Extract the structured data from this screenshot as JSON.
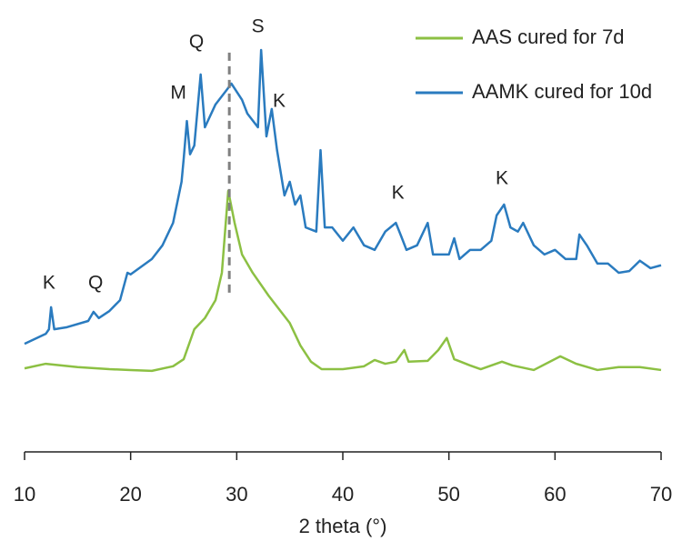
{
  "chart_data": {
    "type": "line",
    "x_label": "2 theta (°)",
    "xlim": [
      10,
      70
    ],
    "xticks": [
      10,
      20,
      30,
      40,
      50,
      60,
      70
    ],
    "ylim": [
      0,
      105
    ],
    "legend": "top right",
    "series": [
      {
        "name": "AAS cured for 7d",
        "color": "#8cc043",
        "x": [
          10,
          12,
          15,
          18,
          20,
          22,
          24,
          25,
          26,
          27,
          28,
          28.6,
          29.2,
          29.8,
          30.5,
          31.5,
          33,
          35,
          36,
          37,
          38,
          40,
          42,
          43,
          44,
          45,
          45.8,
          46.2,
          48,
          49,
          49.8,
          50.5,
          52,
          53,
          55,
          56,
          58,
          60.5,
          62,
          64,
          66,
          68,
          70
        ],
        "values": [
          20.1,
          21.2,
          20.4,
          19.9,
          19.7,
          19.5,
          20.6,
          22.3,
          29.5,
          32.2,
          36.5,
          43.1,
          62.8,
          55.1,
          47.5,
          43.1,
          37.6,
          31.0,
          25.6,
          21.7,
          19.9,
          19.9,
          20.6,
          22.1,
          21.2,
          21.7,
          24.5,
          21.7,
          21.9,
          24.5,
          27.4,
          22.3,
          20.8,
          19.9,
          21.7,
          20.8,
          19.7,
          23.0,
          21.2,
          19.7,
          20.4,
          20.4,
          19.7
        ]
      },
      {
        "name": "AAMK cured for 10d",
        "color": "#2a7bbf",
        "x": [
          10,
          12,
          12.3,
          12.5,
          12.8,
          14,
          16,
          16.5,
          17,
          18,
          19,
          19.7,
          20,
          22,
          23,
          24,
          24.8,
          25,
          25.3,
          25.6,
          26,
          26.6,
          27,
          28,
          29,
          29.5,
          30.5,
          31,
          32,
          32.3,
          32.8,
          33.3,
          33.8,
          34.5,
          35,
          35.5,
          36,
          36.5,
          37.5,
          37.9,
          38.3,
          39,
          40,
          41,
          42,
          43,
          44,
          45,
          45.5,
          46,
          47,
          48,
          48.5,
          50,
          50.5,
          51,
          52,
          53,
          54,
          54.5,
          55.2,
          55.8,
          56.5,
          57,
          58,
          59,
          60,
          61,
          62,
          62.3,
          63,
          64,
          65,
          66,
          67,
          68,
          69,
          70
        ],
        "values": [
          26.0,
          28.4,
          29.5,
          34.8,
          29.5,
          30.0,
          31.5,
          33.7,
          32.2,
          33.9,
          36.5,
          43.1,
          42.7,
          46.4,
          49.7,
          55.1,
          65.0,
          70.5,
          79.6,
          71.6,
          73.7,
          90.8,
          78.1,
          83.6,
          86.9,
          88.6,
          84.7,
          81.4,
          78.1,
          96.7,
          75.9,
          82.5,
          72.6,
          61.7,
          65.0,
          59.5,
          61.7,
          54.0,
          53.0,
          72.6,
          54.0,
          54.0,
          50.8,
          54.0,
          49.7,
          48.6,
          53.0,
          55.1,
          51.9,
          48.6,
          49.7,
          55.1,
          47.5,
          47.5,
          51.4,
          46.4,
          48.6,
          48.6,
          50.8,
          56.9,
          59.5,
          54.0,
          53.0,
          55.1,
          49.7,
          47.5,
          48.6,
          46.4,
          46.4,
          52.3,
          49.7,
          45.3,
          45.3,
          43.1,
          43.5,
          46.0,
          44.2,
          44.9
        ]
      }
    ],
    "dashed_line": {
      "x": 29.3,
      "y_range": [
        38.3,
        96.7
      ],
      "color": "#808080"
    },
    "annotations": [
      {
        "text": "K",
        "x": 12.3,
        "y": 40.5
      },
      {
        "text": "Q",
        "x": 16.7,
        "y": 40.5
      },
      {
        "text": "M",
        "x": 24.5,
        "y": 86.2
      },
      {
        "text": "Q",
        "x": 26.2,
        "y": 98.5
      },
      {
        "text": "S",
        "x": 32.0,
        "y": 102.2
      },
      {
        "text": "K",
        "x": 34.0,
        "y": 84.2
      },
      {
        "text": "K",
        "x": 45.2,
        "y": 62.1
      },
      {
        "text": "K",
        "x": 55.0,
        "y": 65.6
      }
    ]
  }
}
